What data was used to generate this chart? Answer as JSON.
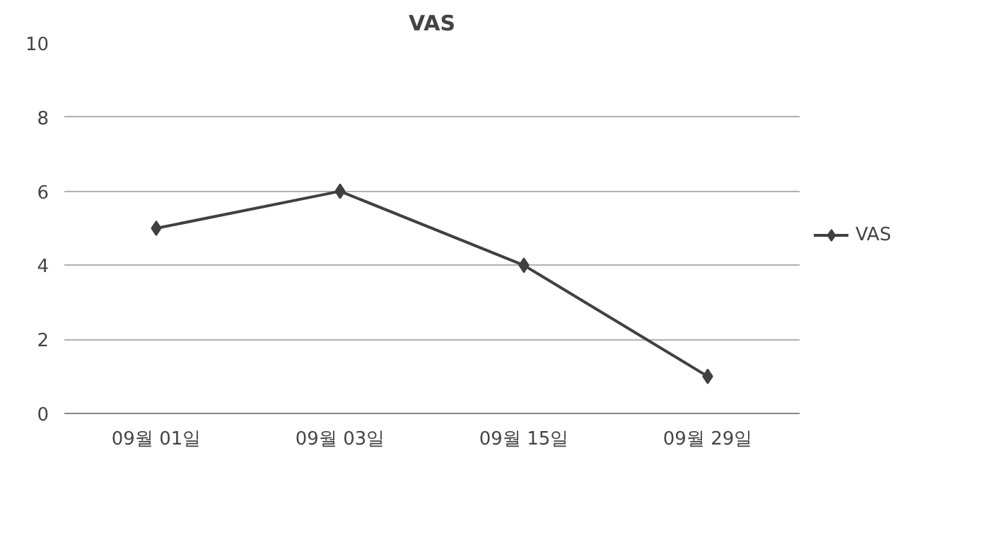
{
  "chart_data": {
    "type": "line",
    "title": "VAS",
    "categories": [
      "09월 01일",
      "09월 03일",
      "09월 15일",
      "09월 29일"
    ],
    "series": [
      {
        "name": "VAS",
        "color": "#404040",
        "values": [
          5,
          6,
          4,
          1
        ]
      }
    ],
    "ylim": [
      0,
      10
    ],
    "yticks": [
      0,
      2,
      4,
      6,
      8,
      10
    ],
    "grid": "y",
    "legend": "right",
    "marker": "diamond",
    "line_style": "solid"
  }
}
